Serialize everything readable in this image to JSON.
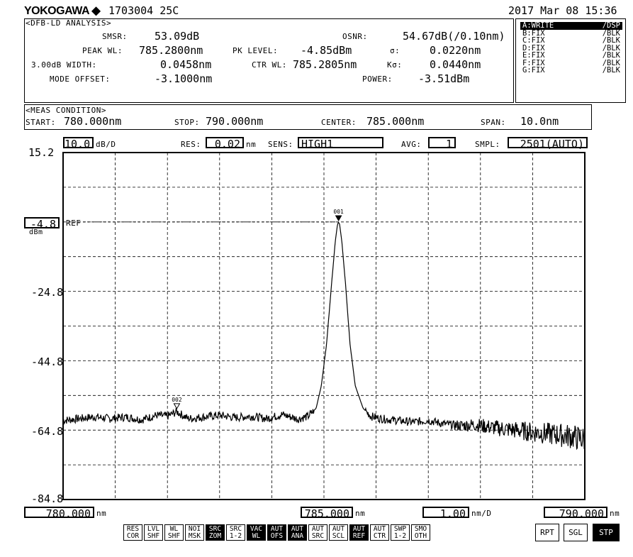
{
  "header": {
    "brand": "YOKOGAWA",
    "brand_mark": "◆",
    "instrument": "1703004 25C",
    "datetime": "2017 Mar 08 15:36"
  },
  "analysis": {
    "title": "<DFB-LD ANALYSIS>",
    "smsr_label": "SMSR:",
    "smsr": "53.09dB",
    "osnr_label": "OSNR:",
    "osnr": "54.67dB(/0.10nm)",
    "peak_wl_label": "PEAK WL:",
    "peak_wl": "785.2800nm",
    "pk_level_label": "PK LEVEL:",
    "pk_level": "-4.85dBm",
    "sigma_label": "σ:",
    "sigma": "0.0220nm",
    "width_label": "3.00dB WIDTH:",
    "width": "0.0458nm",
    "ctr_wl_label": "CTR WL:",
    "ctr_wl": "785.2805nm",
    "ksigma_label": "Kσ:",
    "ksigma": "0.0440nm",
    "mode_offset_label": "MODE OFFSET:",
    "mode_offset": "-3.1000nm",
    "power_label": "POWER:",
    "power": "-3.51dBm"
  },
  "traces": [
    {
      "name": "A:WRITE",
      "mode": "/DSP",
      "active": true
    },
    {
      "name": "B:FIX",
      "mode": "/BLK",
      "active": false
    },
    {
      "name": "C:FIX",
      "mode": "/BLK",
      "active": false
    },
    {
      "name": "D:FIX",
      "mode": "/BLK",
      "active": false
    },
    {
      "name": "E:FIX",
      "mode": "/BLK",
      "active": false
    },
    {
      "name": "F:FIX",
      "mode": "/BLK",
      "active": false
    },
    {
      "name": "G:FIX",
      "mode": "/BLK",
      "active": false
    }
  ],
  "condition": {
    "title": "<MEAS CONDITION>",
    "start_label": "START:",
    "start": "780.000nm",
    "stop_label": "STOP:",
    "stop": "790.000nm",
    "center_label": "CENTER:",
    "center": "785.000nm",
    "span_label": "SPAN:",
    "span": "10.0nm"
  },
  "settings": {
    "scale": "10.0",
    "scale_unit": "dB/D",
    "res_label": "RES:",
    "res": "0.02",
    "res_unit": "nm",
    "sens_label": "SENS:",
    "sens": "HIGH1",
    "avg_label": "AVG:",
    "avg": "1",
    "smpl_label": "SMPL:",
    "smpl": "2501(AUTO)"
  },
  "ref": {
    "value": "-4.8",
    "unit": "dBm",
    "label": "REF"
  },
  "footer": {
    "left_value": "780.000",
    "left_unit": "nm",
    "center_value": "785.000",
    "center_unit": "nm",
    "div_value": "1.00",
    "div_unit": "nm/D",
    "right_value": "790.000",
    "right_unit": "nm"
  },
  "soft_buttons": [
    {
      "l1": "RES",
      "l2": "COR",
      "inv": false
    },
    {
      "l1": "LVL",
      "l2": "SHF",
      "inv": false
    },
    {
      "l1": "WL",
      "l2": "SHF",
      "inv": false
    },
    {
      "l1": "NOI",
      "l2": "MSK",
      "inv": false
    },
    {
      "l1": "SRC",
      "l2": "ZOM",
      "inv": true
    },
    {
      "l1": "SRC",
      "l2": "1-2",
      "inv": false
    },
    {
      "l1": "VAC",
      "l2": "WL",
      "inv": true
    },
    {
      "l1": "AUT",
      "l2": "OFS",
      "inv": true
    },
    {
      "l1": "AUT",
      "l2": "ANA",
      "inv": true
    },
    {
      "l1": "AUT",
      "l2": "SRC",
      "inv": false
    },
    {
      "l1": "AUT",
      "l2": "SCL",
      "inv": false
    },
    {
      "l1": "AUT",
      "l2": "REF",
      "inv": true
    },
    {
      "l1": "AUT",
      "l2": "CTR",
      "inv": false
    },
    {
      "l1": "SWP",
      "l2": "1-2",
      "inv": false
    },
    {
      "l1": "SMO",
      "l2": "OTH",
      "inv": false
    }
  ],
  "sweep_buttons": [
    {
      "label": "RPT",
      "inv": false
    },
    {
      "label": "SGL",
      "inv": false
    },
    {
      "label": "STP",
      "inv": true
    }
  ],
  "chart_data": {
    "type": "line",
    "title": "",
    "xlabel": "",
    "ylabel": "",
    "xunit": "nm",
    "yunit": "dBm",
    "xlim": [
      780.0,
      790.0
    ],
    "ylim": [
      -84.8,
      15.2
    ],
    "grid": true,
    "y_tick_labels": [
      "15.2",
      "-24.8",
      "-44.8",
      "-64.8",
      "-84.8"
    ],
    "y_tick_values": [
      15.2,
      -24.8,
      -44.8,
      -64.8,
      -84.8
    ],
    "ref_level": -4.8,
    "markers": [
      {
        "label": "001",
        "x": 785.28,
        "y": -4.85
      },
      {
        "label": "002",
        "x": 782.18,
        "y": -59.0
      }
    ],
    "series": [
      {
        "x": [
          780.0,
          780.3,
          780.6,
          780.9,
          781.2,
          781.5,
          781.8,
          782.0,
          782.18,
          782.4,
          782.7,
          783.0,
          783.3,
          783.6,
          783.9,
          784.2,
          784.5,
          784.7,
          784.85,
          784.95,
          785.05,
          785.15,
          785.22,
          785.26,
          785.28,
          785.3,
          785.34,
          785.41,
          785.5,
          785.6,
          785.75,
          785.9,
          786.1,
          786.4,
          786.7,
          787.0,
          787.3,
          787.6,
          787.9,
          788.2,
          788.5,
          788.8,
          789.1,
          789.4,
          789.7,
          790.0
        ],
        "y": [
          -62.0,
          -61.5,
          -61.0,
          -61.5,
          -61.0,
          -61.8,
          -60.5,
          -60.8,
          -59.5,
          -61.5,
          -61.0,
          -60.5,
          -61.2,
          -60.8,
          -61.5,
          -60.3,
          -61.6,
          -60.8,
          -58.5,
          -52.0,
          -40.0,
          -22.0,
          -10.0,
          -5.5,
          -4.85,
          -5.5,
          -10.0,
          -22.0,
          -40.0,
          -52.0,
          -58.5,
          -60.8,
          -61.5,
          -62.0,
          -62.5,
          -62.0,
          -63.0,
          -63.5,
          -63.2,
          -64.0,
          -64.5,
          -65.0,
          -65.5,
          -66.0,
          -66.5,
          -67.5
        ]
      }
    ]
  }
}
